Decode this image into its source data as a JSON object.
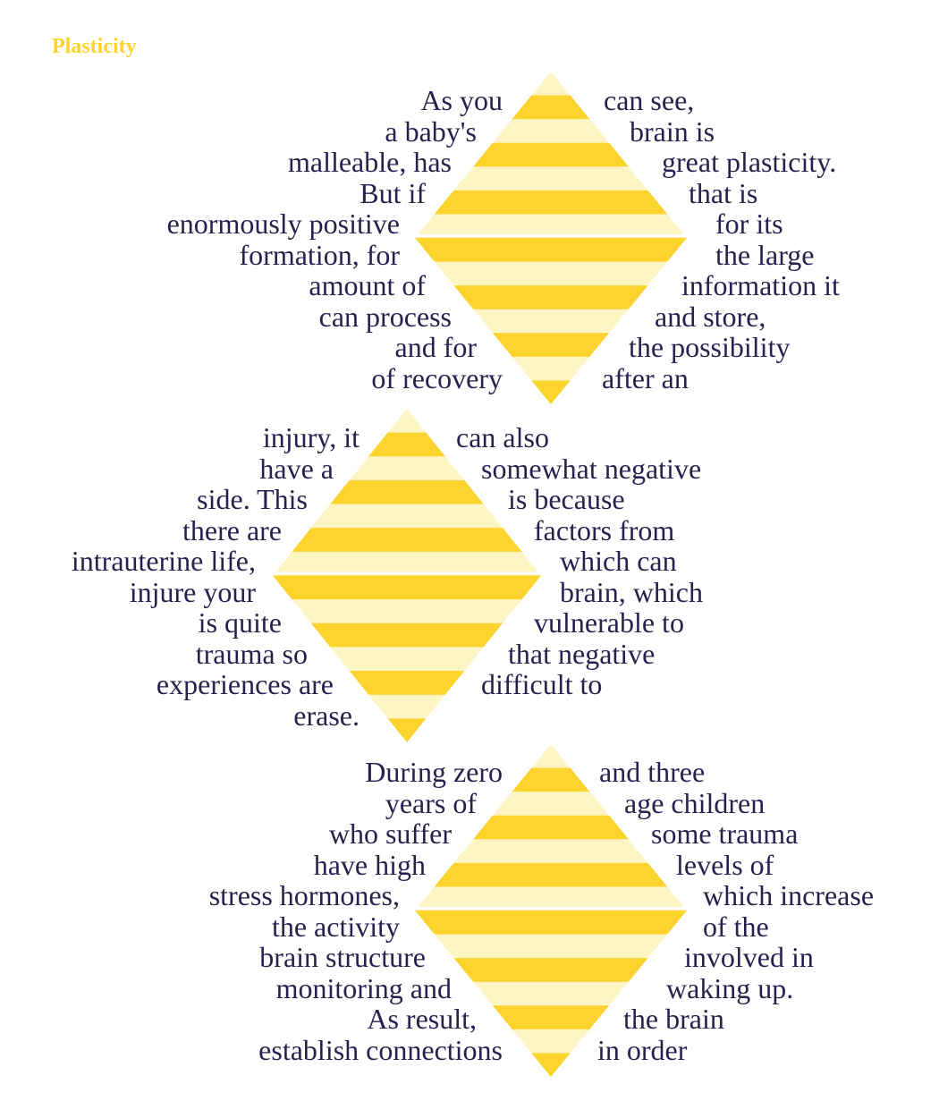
{
  "title": "Plasticity",
  "colors": {
    "title": "#FDD32D",
    "stripe_yellow": "#FDD32D",
    "stripe_light": "#FEF5C4",
    "text": "#2B1F4E"
  },
  "blocks": [
    {
      "left_lines": [
        "As you",
        "a baby's",
        "malleable, has",
        "But if",
        "enormously positive",
        "formation, for",
        "amount of",
        "can process",
        "and for",
        "of recovery"
      ],
      "right_lines": [
        "can see,",
        "brain is",
        "great plasticity.",
        "that is",
        "for its",
        "the large",
        "information it",
        "and store,",
        "the possibility",
        "after an"
      ]
    },
    {
      "left_lines": [
        "injury, it",
        "have a",
        "side. This",
        "there are",
        "intrauterine life,",
        "injure your",
        "is quite",
        "trauma so",
        "experiences are",
        "erase."
      ],
      "right_lines": [
        "can also",
        "somewhat negative",
        "is because",
        "factors from",
        "which can",
        "brain, which",
        "vulnerable to",
        "that negative",
        "difficult to",
        ""
      ]
    },
    {
      "left_lines": [
        "During zero",
        "years of",
        "who suffer",
        "have high",
        "stress hormones,",
        "the activity",
        "brain structure",
        "monitoring and",
        "As result,",
        "establish connections"
      ],
      "right_lines": [
        "and three",
        "age children",
        "some trauma",
        "levels of",
        "which increase",
        "of the",
        "involved in",
        "waking up.",
        "the brain",
        "in order"
      ]
    }
  ]
}
